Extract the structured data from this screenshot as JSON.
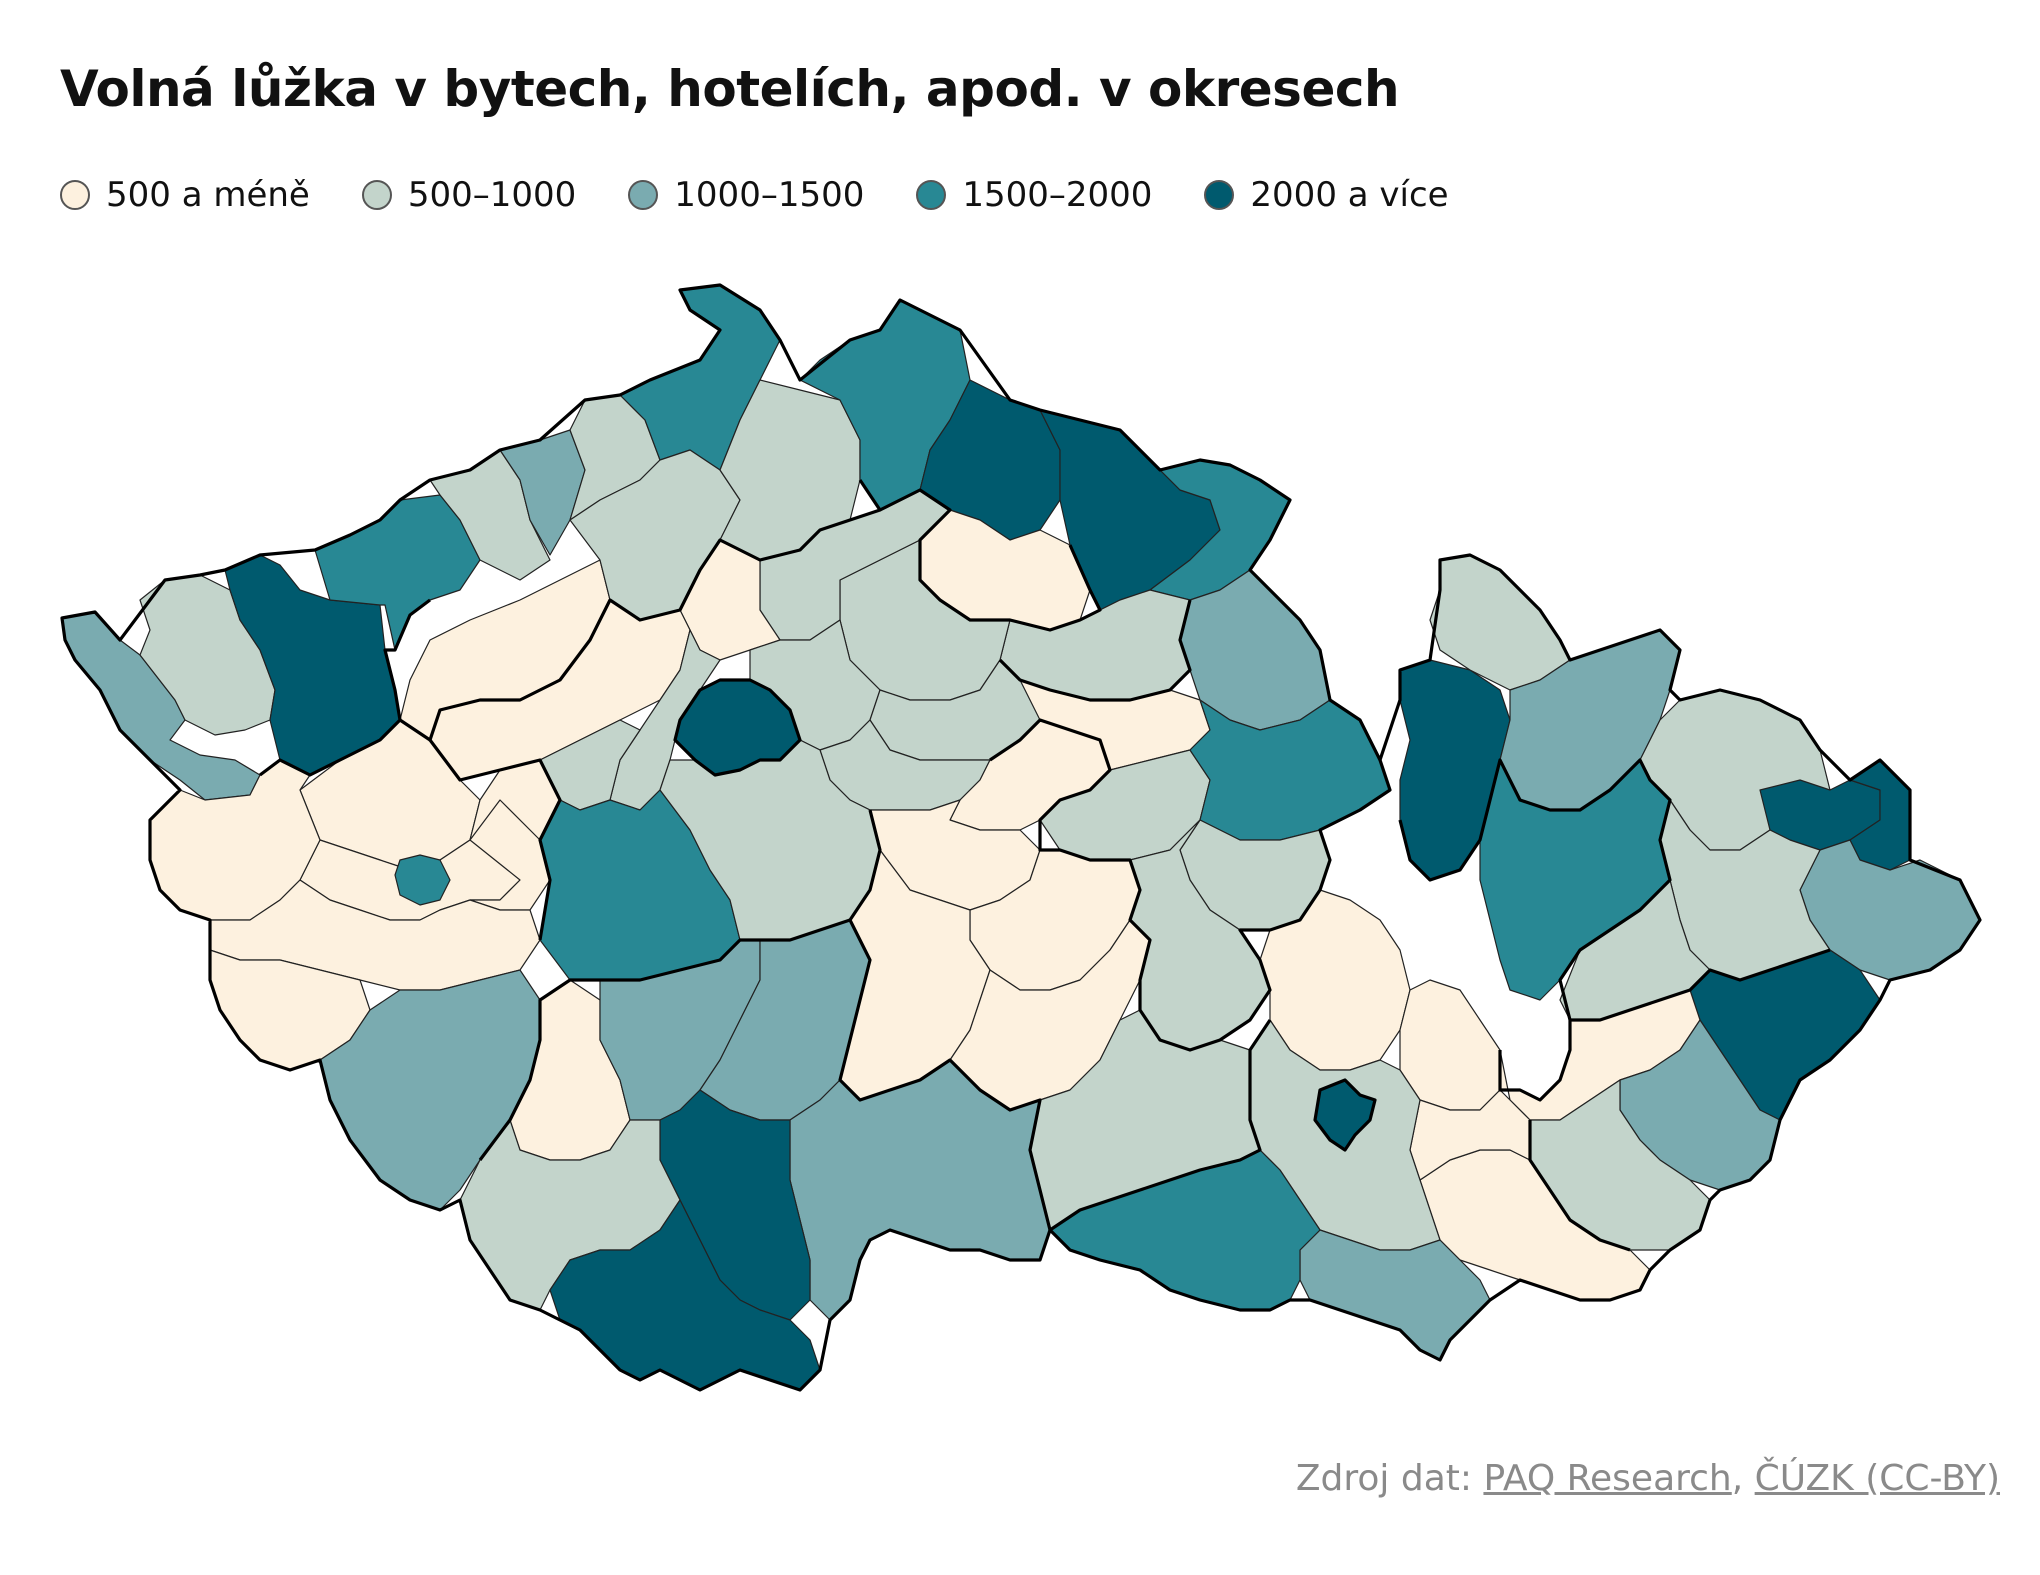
{
  "title": "Volná lůžka v bytech, hotelích, apod. v okresech",
  "legend": [
    {
      "label": "500 a méně",
      "color": "#fdf1df"
    },
    {
      "label": "500–1000",
      "color": "#c3d4cb"
    },
    {
      "label": "1000–1500",
      "color": "#7aabb0"
    },
    {
      "label": "1500–2000",
      "color": "#288894"
    },
    {
      "label": "2000 a více",
      "color": "#005a6e"
    }
  ],
  "source": {
    "prefix": "Zdroj dat: ",
    "link1": "PAQ Research",
    "separator": ", ",
    "link2": "ČÚZK (CC-BY)"
  },
  "colors": {
    "border_region": "#000000",
    "border_district": "#222222"
  }
}
